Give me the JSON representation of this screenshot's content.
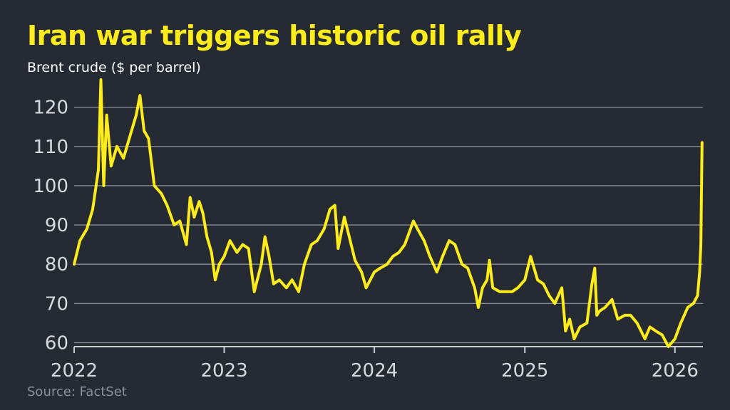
{
  "title": "Iran war triggers historic oil rally",
  "subtitle": "Brent crude ($ per barrel)",
  "source": "Source: FactSet",
  "colors": {
    "background": "#262a33",
    "line": "#ffec1a",
    "grid": "#8a8e96",
    "axis": "#c9ccd1",
    "text": "#d7d9dd"
  },
  "chart_data": {
    "type": "line",
    "title": "Iran war triggers historic oil rally",
    "ylabel": "Brent crude ($ per barrel)",
    "xlabel": "",
    "ylim": [
      59,
      127
    ],
    "xlim": [
      "2022-01-01",
      "2026-03-10"
    ],
    "yticks": [
      "60",
      "70",
      "80",
      "90",
      "100",
      "110",
      "120"
    ],
    "xticks": [
      "2022",
      "2023",
      "2024",
      "2025",
      "2026"
    ],
    "grid": true,
    "series": [
      {
        "points": [
          [
            "2022-01-01",
            80
          ],
          [
            "2022-01-15",
            86
          ],
          [
            "2022-02-01",
            89
          ],
          [
            "2022-02-15",
            94
          ],
          [
            "2022-03-01",
            104
          ],
          [
            "2022-03-07",
            127
          ],
          [
            "2022-03-14",
            100
          ],
          [
            "2022-03-21",
            118
          ],
          [
            "2022-04-01",
            105
          ],
          [
            "2022-04-15",
            110
          ],
          [
            "2022-05-01",
            107
          ],
          [
            "2022-05-15",
            112
          ],
          [
            "2022-06-01",
            118
          ],
          [
            "2022-06-10",
            123
          ],
          [
            "2022-06-20",
            114
          ],
          [
            "2022-07-01",
            112
          ],
          [
            "2022-07-15",
            100
          ],
          [
            "2022-08-01",
            98
          ],
          [
            "2022-08-15",
            95
          ],
          [
            "2022-09-01",
            90
          ],
          [
            "2022-09-15",
            91
          ],
          [
            "2022-10-01",
            85
          ],
          [
            "2022-10-10",
            97
          ],
          [
            "2022-10-20",
            92
          ],
          [
            "2022-11-01",
            96
          ],
          [
            "2022-11-10",
            93
          ],
          [
            "2022-11-20",
            87
          ],
          [
            "2022-12-01",
            83
          ],
          [
            "2022-12-10",
            76
          ],
          [
            "2022-12-20",
            80
          ],
          [
            "2023-01-01",
            82
          ],
          [
            "2023-01-15",
            86
          ],
          [
            "2023-02-01",
            83
          ],
          [
            "2023-02-15",
            85
          ],
          [
            "2023-03-01",
            84
          ],
          [
            "2023-03-15",
            73
          ],
          [
            "2023-04-01",
            80
          ],
          [
            "2023-04-10",
            87
          ],
          [
            "2023-04-20",
            82
          ],
          [
            "2023-05-01",
            75
          ],
          [
            "2023-05-15",
            76
          ],
          [
            "2023-06-01",
            74
          ],
          [
            "2023-06-15",
            76
          ],
          [
            "2023-07-01",
            73
          ],
          [
            "2023-07-15",
            80
          ],
          [
            "2023-08-01",
            85
          ],
          [
            "2023-08-15",
            86
          ],
          [
            "2023-09-01",
            89
          ],
          [
            "2023-09-15",
            94
          ],
          [
            "2023-09-27",
            95
          ],
          [
            "2023-10-05",
            84
          ],
          [
            "2023-10-20",
            92
          ],
          [
            "2023-11-01",
            87
          ],
          [
            "2023-11-15",
            81
          ],
          [
            "2023-12-01",
            78
          ],
          [
            "2023-12-12",
            74
          ],
          [
            "2024-01-01",
            78
          ],
          [
            "2024-01-15",
            79
          ],
          [
            "2024-02-01",
            80
          ],
          [
            "2024-02-15",
            82
          ],
          [
            "2024-03-01",
            83
          ],
          [
            "2024-03-15",
            85
          ],
          [
            "2024-04-05",
            91
          ],
          [
            "2024-04-15",
            89
          ],
          [
            "2024-05-01",
            86
          ],
          [
            "2024-05-15",
            82
          ],
          [
            "2024-06-01",
            78
          ],
          [
            "2024-06-15",
            82
          ],
          [
            "2024-07-01",
            86
          ],
          [
            "2024-07-15",
            85
          ],
          [
            "2024-08-01",
            80
          ],
          [
            "2024-08-15",
            79
          ],
          [
            "2024-09-01",
            74
          ],
          [
            "2024-09-10",
            69
          ],
          [
            "2024-09-20",
            74
          ],
          [
            "2024-10-01",
            76
          ],
          [
            "2024-10-07",
            81
          ],
          [
            "2024-10-15",
            74
          ],
          [
            "2024-11-01",
            73
          ],
          [
            "2024-11-15",
            73
          ],
          [
            "2024-12-01",
            73
          ],
          [
            "2024-12-15",
            74
          ],
          [
            "2025-01-01",
            76
          ],
          [
            "2025-01-15",
            82
          ],
          [
            "2025-02-01",
            76
          ],
          [
            "2025-02-15",
            75
          ],
          [
            "2025-03-01",
            72
          ],
          [
            "2025-03-15",
            70
          ],
          [
            "2025-04-01",
            74
          ],
          [
            "2025-04-10",
            63
          ],
          [
            "2025-04-20",
            66
          ],
          [
            "2025-05-01",
            61
          ],
          [
            "2025-05-15",
            64
          ],
          [
            "2025-06-01",
            65
          ],
          [
            "2025-06-13",
            75
          ],
          [
            "2025-06-20",
            79
          ],
          [
            "2025-06-25",
            67
          ],
          [
            "2025-07-01",
            68
          ],
          [
            "2025-07-15",
            69
          ],
          [
            "2025-08-01",
            71
          ],
          [
            "2025-08-15",
            66
          ],
          [
            "2025-09-01",
            67
          ],
          [
            "2025-09-15",
            67
          ],
          [
            "2025-10-01",
            65
          ],
          [
            "2025-10-20",
            61
          ],
          [
            "2025-11-01",
            64
          ],
          [
            "2025-11-15",
            63
          ],
          [
            "2025-12-01",
            62
          ],
          [
            "2025-12-16",
            59
          ],
          [
            "2026-01-01",
            61
          ],
          [
            "2026-01-15",
            65
          ],
          [
            "2026-02-01",
            69
          ],
          [
            "2026-02-15",
            70
          ],
          [
            "2026-02-25",
            72
          ],
          [
            "2026-03-02",
            78
          ],
          [
            "2026-03-05",
            85
          ],
          [
            "2026-03-08",
            111
          ]
        ]
      }
    ]
  }
}
